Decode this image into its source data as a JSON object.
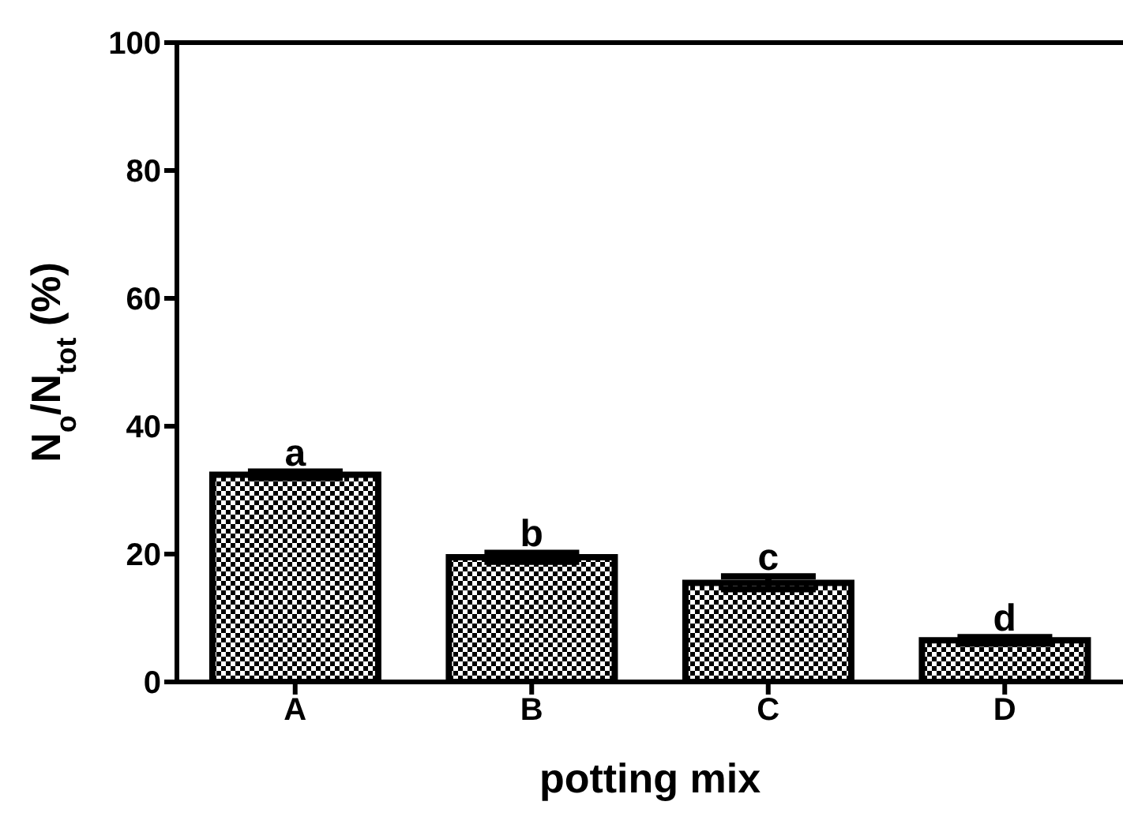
{
  "chart_data": {
    "type": "bar",
    "xlabel": "potting mix",
    "ylabel": "N$_{o}$/N$_{tot}$ (%)",
    "categories": [
      "A",
      "B",
      "C",
      "D"
    ],
    "values": [
      32.4,
      19.5,
      15.5,
      6.5
    ],
    "errors": [
      0.5,
      0.7,
      1,
      0.5
    ],
    "color": "#000000",
    "ylim": [
      0,
      100
    ],
    "yticks": [
      0,
      20,
      40,
      60,
      80,
      100
    ],
    "grid": false,
    "legend": false,
    "annotations": [
      {
        "text": "a",
        "x": "A",
        "y": 32.9
      },
      {
        "text": "b",
        "x": "B",
        "y": 20.2
      },
      {
        "text": "c",
        "x": "C",
        "y": 16.5
      },
      {
        "text": "d",
        "x": "D",
        "y": 7
      }
    ]
  }
}
